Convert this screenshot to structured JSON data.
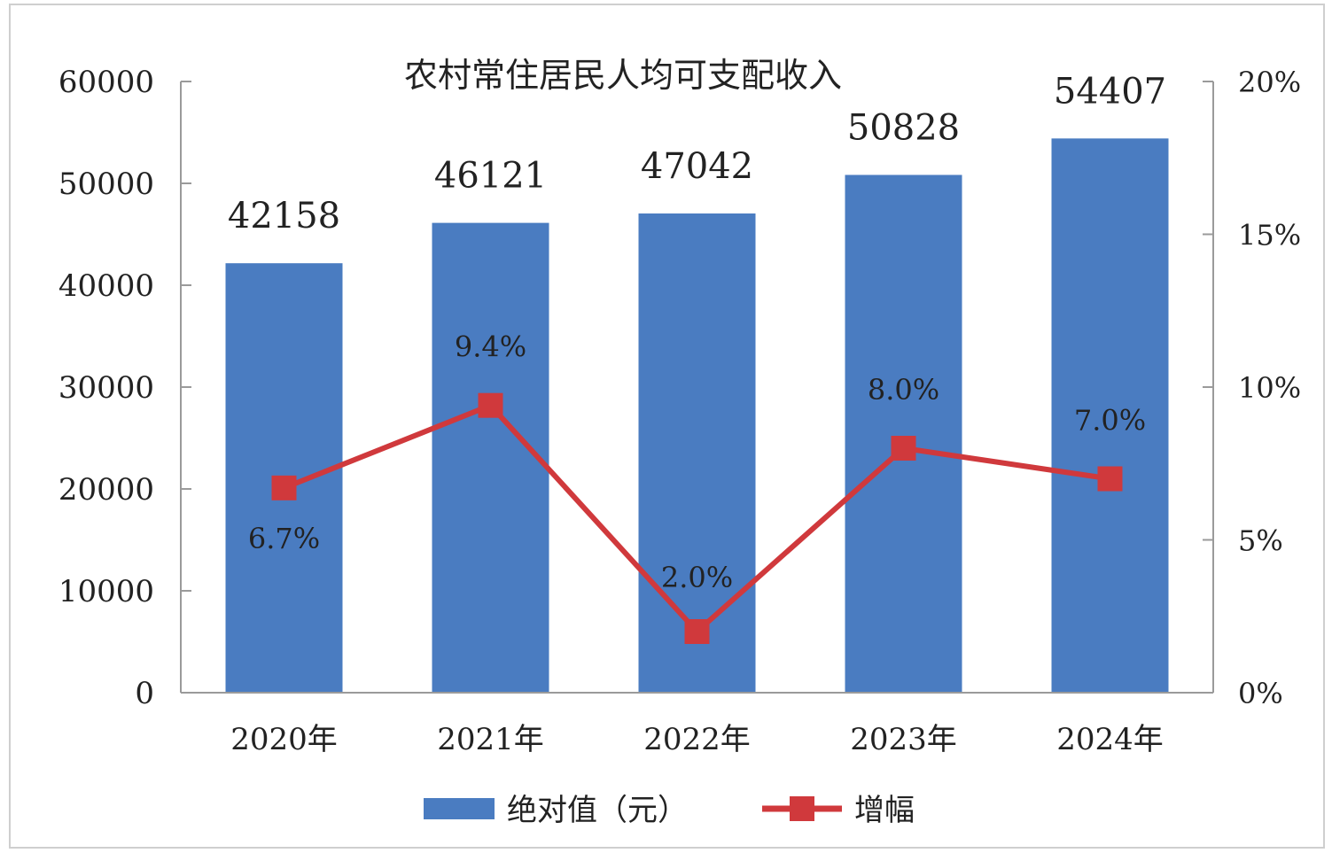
{
  "chart_data": {
    "type": "bar",
    "title": "农村常住居民人均可支配收入",
    "categories": [
      "2020年",
      "2021年",
      "2022年",
      "2023年",
      "2024年"
    ],
    "series": [
      {
        "name": "绝对值（元）",
        "type": "bar",
        "axis": "left",
        "color": "#4a7cc1",
        "values": [
          42158,
          46121,
          47042,
          50828,
          54407
        ],
        "labels": [
          "42158",
          "46121",
          "47042",
          "50828",
          "54407"
        ]
      },
      {
        "name": "增幅",
        "type": "line",
        "axis": "right",
        "color": "#d0393c",
        "marker": "square",
        "values": [
          6.7,
          9.4,
          2.0,
          8.0,
          7.0
        ],
        "labels": [
          "6.7%",
          "9.4%",
          "2.0%",
          "8.0%",
          "7.0%"
        ]
      }
    ],
    "y_left": {
      "min": 0,
      "max": 60000,
      "ticks": [
        "0",
        "10000",
        "20000",
        "30000",
        "40000",
        "50000",
        "60000"
      ]
    },
    "y_right": {
      "min": 0,
      "max": 20,
      "ticks": [
        "0%",
        "5%",
        "10%",
        "15%",
        "20%"
      ]
    },
    "grid": false,
    "legend_position": "bottom"
  }
}
